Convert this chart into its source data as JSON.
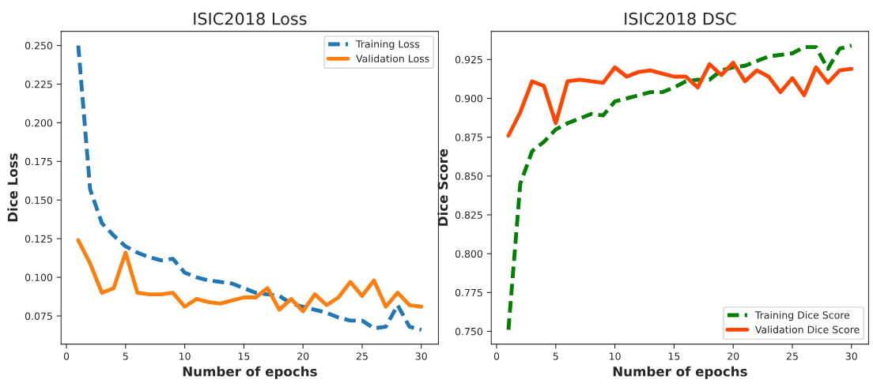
{
  "chart_data": [
    {
      "type": "line",
      "title": "ISIC2018 Loss",
      "xlabel": "Number of epochs",
      "ylabel": "Dice Loss",
      "x": [
        1,
        2,
        3,
        4,
        5,
        6,
        7,
        8,
        9,
        10,
        11,
        12,
        13,
        14,
        15,
        16,
        17,
        18,
        19,
        20,
        21,
        22,
        23,
        24,
        25,
        26,
        27,
        28,
        29,
        30
      ],
      "xlim": [
        -0.45,
        31.45
      ],
      "xticks": [
        0,
        5,
        10,
        15,
        20,
        25,
        30
      ],
      "ylim": [
        0.0568,
        0.2592
      ],
      "yticks": [
        {
          "value": 0.075,
          "label": "0.075"
        },
        {
          "value": 0.1,
          "label": "0.100"
        },
        {
          "value": 0.125,
          "label": "0.125"
        },
        {
          "value": 0.15,
          "label": "0.150"
        },
        {
          "value": 0.175,
          "label": "0.175"
        },
        {
          "value": 0.2,
          "label": "0.200"
        },
        {
          "value": 0.225,
          "label": "0.225"
        },
        {
          "value": 0.25,
          "label": "0.250"
        }
      ],
      "grid": false,
      "legend": "top right",
      "series": [
        {
          "name": "Training Loss",
          "color": "#1f77b4",
          "line_style": "dashed",
          "values": [
            0.25,
            0.157,
            0.135,
            0.127,
            0.12,
            0.116,
            0.113,
            0.111,
            0.112,
            0.103,
            0.1,
            0.098,
            0.097,
            0.096,
            0.093,
            0.09,
            0.089,
            0.088,
            0.083,
            0.081,
            0.079,
            0.077,
            0.074,
            0.072,
            0.072,
            0.067,
            0.068,
            0.082,
            0.068,
            0.066
          ]
        },
        {
          "name": "Validation Loss",
          "color": "#ff7f0e",
          "line_style": "solid",
          "values": [
            0.124,
            0.109,
            0.09,
            0.093,
            0.116,
            0.09,
            0.089,
            0.089,
            0.09,
            0.081,
            0.086,
            0.084,
            0.083,
            0.085,
            0.087,
            0.087,
            0.093,
            0.079,
            0.086,
            0.078,
            0.089,
            0.082,
            0.087,
            0.097,
            0.088,
            0.098,
            0.081,
            0.09,
            0.082,
            0.081
          ]
        }
      ]
    },
    {
      "type": "line",
      "title": "ISIC2018 DSC",
      "xlabel": "Number of epochs",
      "ylabel": "Dice Score",
      "x": [
        1,
        2,
        3,
        4,
        5,
        6,
        7,
        8,
        9,
        10,
        11,
        12,
        13,
        14,
        15,
        16,
        17,
        18,
        19,
        20,
        21,
        22,
        23,
        24,
        25,
        26,
        27,
        28,
        29,
        30
      ],
      "xlim": [
        -0.45,
        31.45
      ],
      "xticks": [
        0,
        5,
        10,
        15,
        20,
        25,
        30
      ],
      "ylim": [
        0.7418,
        0.9432
      ],
      "yticks": [
        {
          "value": 0.75,
          "label": "0.750"
        },
        {
          "value": 0.775,
          "label": "0.775"
        },
        {
          "value": 0.8,
          "label": "0.800"
        },
        {
          "value": 0.825,
          "label": "0.825"
        },
        {
          "value": 0.85,
          "label": "0.850"
        },
        {
          "value": 0.875,
          "label": "0.875"
        },
        {
          "value": 0.9,
          "label": "0.900"
        },
        {
          "value": 0.925,
          "label": "0.925"
        }
      ],
      "grid": false,
      "legend": "bottom right",
      "series": [
        {
          "name": "Training Dice Score",
          "color": "#008000",
          "line_style": "dashed",
          "values": [
            0.751,
            0.845,
            0.866,
            0.872,
            0.88,
            0.884,
            0.887,
            0.89,
            0.889,
            0.898,
            0.9,
            0.902,
            0.904,
            0.904,
            0.907,
            0.911,
            0.912,
            0.912,
            0.918,
            0.92,
            0.921,
            0.924,
            0.927,
            0.928,
            0.929,
            0.933,
            0.933,
            0.919,
            0.932,
            0.934
          ]
        },
        {
          "name": "Validation Dice Score",
          "color": "#ff4500",
          "line_style": "solid",
          "values": [
            0.876,
            0.891,
            0.911,
            0.908,
            0.884,
            0.911,
            0.912,
            0.911,
            0.91,
            0.92,
            0.914,
            0.917,
            0.918,
            0.916,
            0.914,
            0.914,
            0.907,
            0.922,
            0.915,
            0.923,
            0.911,
            0.918,
            0.914,
            0.904,
            0.913,
            0.902,
            0.92,
            0.91,
            0.918,
            0.919
          ]
        }
      ]
    }
  ]
}
